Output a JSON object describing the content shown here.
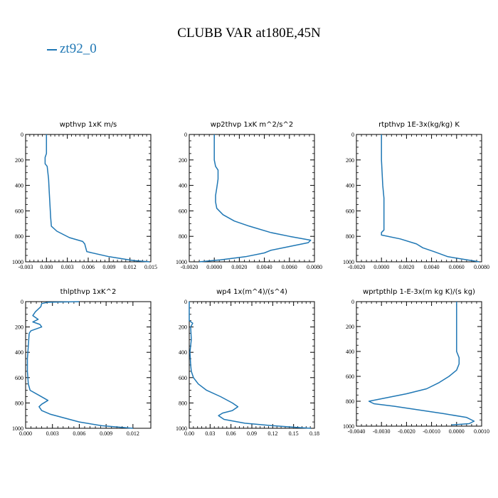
{
  "title": "CLUBB VAR at180E,45N",
  "legend": {
    "label": "zt92_0",
    "color": "#1f77b4"
  },
  "chart_data": [
    {
      "type": "line",
      "title": "wpthvp  1xK m/s",
      "xlim": [
        -0.003,
        0.015
      ],
      "xticks": [
        "-0.003",
        "0.000",
        "0.003",
        "0.006",
        "0.009",
        "0.012",
        "0.015"
      ],
      "ylim": [
        1000,
        0
      ],
      "yticks": [
        "0",
        "200",
        "400",
        "600",
        "800",
        "1000"
      ],
      "series": [
        {
          "x": [
            0.0,
            0.0,
            0.0,
            -0.0002,
            -0.0002,
            0.0001,
            0.0003,
            0.0004,
            0.0005,
            0.0006,
            0.0007,
            0.0015,
            0.0033,
            0.0052,
            0.0055,
            0.0058,
            0.009,
            0.0125,
            0.0148
          ],
          "y": [
            0,
            100,
            150,
            180,
            230,
            250,
            350,
            450,
            550,
            650,
            720,
            760,
            810,
            840,
            860,
            920,
            960,
            990,
            1000
          ]
        }
      ]
    },
    {
      "type": "line",
      "title": "wp2thvp  1xK m^2/s^2",
      "xlim": [
        -0.002,
        0.008
      ],
      "xticks": [
        "-0.0020",
        "0.0000",
        "0.0020",
        "0.0040",
        "0.0060",
        "0.0080"
      ],
      "ylim": [
        1000,
        0
      ],
      "yticks": [
        "0",
        "200",
        "400",
        "600",
        "800",
        "1000"
      ],
      "series": [
        {
          "x": [
            0.0,
            0.0,
            0.0001,
            0.0003,
            0.0003,
            0.0002,
            0.0001,
            0.0001,
            0.0002,
            0.0007,
            0.0016,
            0.0028,
            0.0045,
            0.006,
            0.0077,
            0.0075,
            0.006,
            0.0045,
            0.004,
            0.0025,
            0.0005,
            -0.0012
          ],
          "y": [
            0,
            200,
            250,
            280,
            350,
            420,
            480,
            530,
            580,
            630,
            680,
            720,
            770,
            800,
            830,
            850,
            880,
            910,
            930,
            960,
            985,
            1000
          ]
        }
      ]
    },
    {
      "type": "line",
      "title": "rtpthvp  1E-3x(kg/kg) K",
      "xlim": [
        -0.002,
        0.008
      ],
      "xticks": [
        "-0.0020",
        "0.0000",
        "0.0020",
        "0.0040",
        "0.0060",
        "0.0080"
      ],
      "ylim": [
        1000,
        0
      ],
      "yticks": [
        "0",
        "200",
        "400",
        "600",
        "800",
        "1000"
      ],
      "series": [
        {
          "x": [
            0.0,
            0.0,
            0.0001,
            0.0002,
            0.0002,
            0.0002,
            0.0002,
            0.0,
            0.0,
            0.0015,
            0.0028,
            0.0033,
            0.0042,
            0.0053,
            0.0078
          ],
          "y": [
            0,
            200,
            400,
            500,
            600,
            700,
            750,
            770,
            790,
            820,
            860,
            890,
            920,
            960,
            1000
          ]
        }
      ]
    },
    {
      "type": "line",
      "title": "thlpthvp  1xK^2",
      "xlim": [
        0.0,
        0.014
      ],
      "xticks": [
        "0.000",
        "0.003",
        "0.006",
        "0.009",
        "0.012"
      ],
      "ylim": [
        1000,
        0
      ],
      "yticks": [
        "0",
        "200",
        "400",
        "600",
        "800",
        "1000"
      ],
      "series": [
        {
          "x": [
            0.006,
            0.0025,
            0.0018,
            0.0017,
            0.0011,
            0.0008,
            0.0014,
            0.0008,
            0.0016,
            0.0018,
            0.0006,
            0.0004,
            0.0003,
            0.0002,
            0.0002,
            0.0003,
            0.0005,
            0.0015,
            0.0025,
            0.0018,
            0.0015,
            0.0018,
            0.0028,
            0.006,
            0.0085,
            0.012
          ],
          "y": [
            0,
            5,
            15,
            40,
            80,
            110,
            140,
            160,
            180,
            200,
            230,
            250,
            350,
            450,
            550,
            650,
            700,
            740,
            780,
            810,
            830,
            860,
            890,
            950,
            980,
            1000
          ]
        }
      ]
    },
    {
      "type": "line",
      "title": "wp4  1x(m^4)/(s^4)",
      "xlim": [
        0.0,
        0.18
      ],
      "xticks": [
        "0.00",
        "0.03",
        "0.06",
        "0.09",
        "0.12",
        "0.15",
        "0.18"
      ],
      "ylim": [
        1000,
        0
      ],
      "yticks": [
        "0",
        "200",
        "400",
        "600",
        "800",
        "1000"
      ],
      "series": [
        {
          "x": [
            0.0,
            0.0,
            0.005,
            0.002,
            0.003,
            0.001,
            0.002,
            0.003,
            0.006,
            0.013,
            0.025,
            0.045,
            0.062,
            0.07,
            0.062,
            0.048,
            0.042,
            0.05,
            0.08,
            0.12,
            0.16,
            0.175
          ],
          "y": [
            0,
            150,
            170,
            200,
            300,
            400,
            500,
            550,
            600,
            650,
            700,
            750,
            800,
            830,
            860,
            880,
            900,
            930,
            960,
            980,
            995,
            1000
          ]
        }
      ]
    },
    {
      "type": "line",
      "title": "wprtpthlp  1-E-3x(m kg K)/(s kg)",
      "xlim": [
        -0.004,
        0.001
      ],
      "xticks": [
        "-0.0040",
        "-0.0030",
        "-0.0020",
        "-0.0010",
        "0.0000",
        "0.0010"
      ],
      "ylim": [
        1000,
        0
      ],
      "yticks": [
        "0",
        "200",
        "400",
        "600",
        "800",
        "1000"
      ],
      "series": [
        {
          "x": [
            0.0,
            0.0,
            0.0,
            0.0001,
            0.0001,
            0.0,
            -0.0003,
            -0.0007,
            -0.0012,
            -0.002,
            -0.003,
            -0.0035,
            -0.0033,
            -0.0025,
            -0.0015,
            -0.0005,
            0.0004,
            0.0007,
            0.0005,
            -0.0002
          ],
          "y": [
            0,
            200,
            400,
            450,
            500,
            550,
            600,
            650,
            700,
            740,
            780,
            800,
            820,
            840,
            870,
            900,
            930,
            960,
            980,
            990
          ]
        }
      ]
    }
  ]
}
